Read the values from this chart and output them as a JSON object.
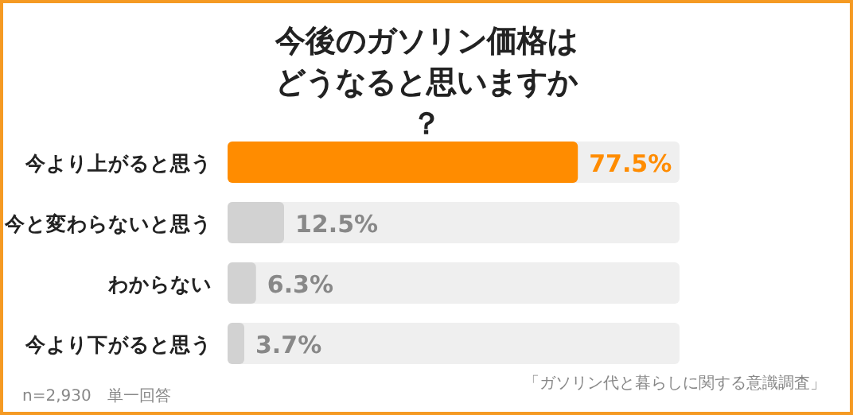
{
  "chart_data": {
    "type": "bar",
    "orientation": "horizontal",
    "title": "今後のガソリン価格はどうなると思いますか？",
    "categories": [
      "今より上がると思う",
      "今と変わらないと思う",
      "わからない",
      "今より下がると思う"
    ],
    "values": [
      77.5,
      12.5,
      6.3,
      3.7
    ],
    "colors": [
      "#ff8c00",
      "#d2d2d2",
      "#d2d2d2",
      "#d2d2d2"
    ],
    "value_labels": [
      "77.5%",
      "12.5%",
      "6.3%",
      "3.7%"
    ],
    "xlim": [
      0,
      100
    ],
    "annotations": [
      "n=2,930　単一回答",
      "「ガソリン代と暮らしに関する意識調査」"
    ]
  }
}
